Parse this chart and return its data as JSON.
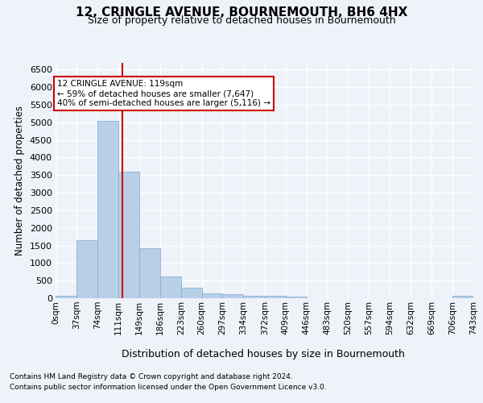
{
  "title": "12, CRINGLE AVENUE, BOURNEMOUTH, BH6 4HX",
  "subtitle": "Size of property relative to detached houses in Bournemouth",
  "xlabel": "Distribution of detached houses by size in Bournemouth",
  "ylabel": "Number of detached properties",
  "bin_edges": [
    0,
    37,
    74,
    111,
    149,
    186,
    223,
    260,
    297,
    334,
    372,
    409,
    446,
    483,
    520,
    557,
    594,
    632,
    669,
    706,
    743
  ],
  "bar_values": [
    75,
    1650,
    5050,
    3600,
    1420,
    620,
    290,
    140,
    115,
    80,
    65,
    55,
    0,
    0,
    0,
    0,
    0,
    0,
    0,
    60
  ],
  "bar_color": "#b8cfe8",
  "bar_edgecolor": "#8aafd4",
  "ylim": [
    0,
    6700
  ],
  "yticks": [
    0,
    500,
    1000,
    1500,
    2000,
    2500,
    3000,
    3500,
    4000,
    4500,
    5000,
    5500,
    6000,
    6500
  ],
  "vline_x": 119,
  "vline_color": "#cc0000",
  "annotation_text": "12 CRINGLE AVENUE: 119sqm\n← 59% of detached houses are smaller (7,647)\n40% of semi-detached houses are larger (5,116) →",
  "annotation_box_color": "#ffffff",
  "annotation_box_edgecolor": "#cc0000",
  "footer1": "Contains HM Land Registry data © Crown copyright and database right 2024.",
  "footer2": "Contains public sector information licensed under the Open Government Licence v3.0.",
  "background_color": "#eef2f9",
  "plot_bg_color": "#eef2f9",
  "grid_color": "#ffffff",
  "title_fontsize": 11,
  "subtitle_fontsize": 9,
  "tick_labels": [
    "0sqm",
    "37sqm",
    "74sqm",
    "111sqm",
    "149sqm",
    "186sqm",
    "223sqm",
    "260sqm",
    "297sqm",
    "334sqm",
    "372sqm",
    "409sqm",
    "446sqm",
    "483sqm",
    "520sqm",
    "557sqm",
    "594sqm",
    "632sqm",
    "669sqm",
    "706sqm",
    "743sqm"
  ]
}
